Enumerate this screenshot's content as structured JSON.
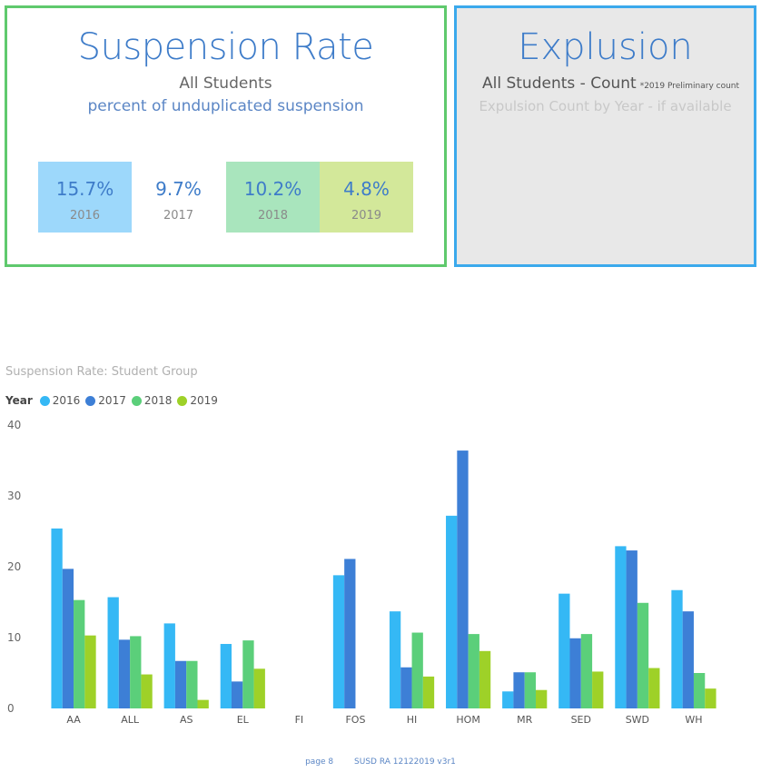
{
  "suspension": {
    "title": "Suspension Rate",
    "subtitle1": "All Students",
    "subtitle2": "percent of unduplicated suspension",
    "tiles": [
      {
        "value": "15.7%",
        "year": "2016",
        "bg": "#9dd8fb"
      },
      {
        "value": "9.7%",
        "year": "2017",
        "bg": "#ffffff"
      },
      {
        "value": "10.2%",
        "year": "2018",
        "bg": "#a9e5bd"
      },
      {
        "value": "4.8%",
        "year": "2019",
        "bg": "#d3e89a"
      }
    ]
  },
  "expulsion": {
    "title": "Explusion",
    "subtitle1": "All Students - Count",
    "note": "*2019 Preliminary count",
    "subtitle2": "Expulsion Count by Year - if available"
  },
  "chart_data": {
    "type": "bar",
    "title": "Suspension Rate: Student Group",
    "legend_title": "Year",
    "categories": [
      "AA",
      "ALL",
      "AS",
      "EL",
      "FI",
      "FOS",
      "HI",
      "HOM",
      "MR",
      "SED",
      "SWD",
      "WH"
    ],
    "series": [
      {
        "name": "2016",
        "color": "#35b8f5",
        "values": [
          25.4,
          15.7,
          12.0,
          9.1,
          null,
          18.8,
          13.7,
          27.2,
          2.4,
          16.2,
          22.9,
          16.7
        ]
      },
      {
        "name": "2017",
        "color": "#3d7fd6",
        "values": [
          19.7,
          9.7,
          6.7,
          3.8,
          null,
          21.1,
          5.8,
          36.4,
          5.1,
          9.9,
          22.3,
          13.7
        ]
      },
      {
        "name": "2018",
        "color": "#5bcf7a",
        "values": [
          15.3,
          10.2,
          6.7,
          9.6,
          null,
          null,
          10.7,
          10.5,
          5.1,
          10.5,
          14.9,
          5.0
        ]
      },
      {
        "name": "2019",
        "color": "#9ed128",
        "values": [
          10.3,
          4.8,
          1.2,
          5.6,
          null,
          null,
          4.5,
          8.1,
          2.6,
          5.2,
          5.7,
          2.8
        ]
      }
    ],
    "ylim": [
      0,
      40
    ],
    "yticks": [
      0,
      10,
      20,
      30,
      40
    ],
    "legend_position": "top-left",
    "grid": false
  },
  "footer": {
    "page": "page 8",
    "doc": "SUSD RA 12122019 v3r1"
  }
}
